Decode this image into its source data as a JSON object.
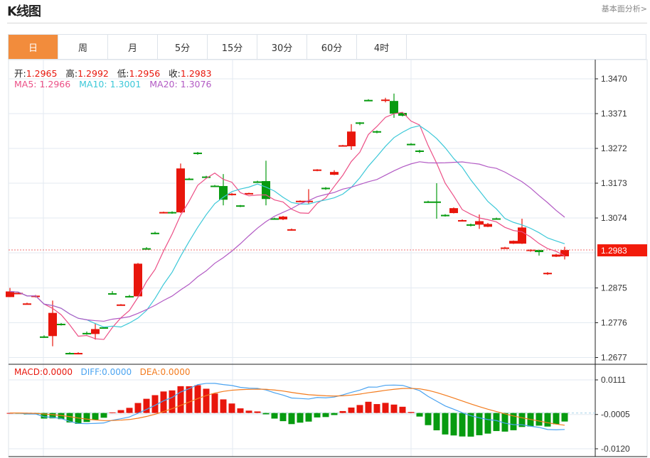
{
  "header": {
    "title": "K线图",
    "fundamental_link": "基本面分析>"
  },
  "tabs": [
    {
      "label": "日",
      "active": true
    },
    {
      "label": "周"
    },
    {
      "label": "月"
    },
    {
      "label": "5分"
    },
    {
      "label": "15分"
    },
    {
      "label": "30分"
    },
    {
      "label": "60分"
    },
    {
      "label": "4时"
    }
  ],
  "ohlc_legend": {
    "open_label": "开:",
    "open": "1.2965",
    "high_label": "高:",
    "high": "1.2992",
    "low_label": "低:",
    "low": "1.2956",
    "close_label": "收:",
    "close": "1.2983"
  },
  "ma_legend": {
    "ma5": "MA5: 1.2966",
    "ma10": "MA10: 1.3001",
    "ma20": "MA20: 1.3076"
  },
  "macd_legend": {
    "macd": "MACD:0.0000",
    "diff": "DIFF:0.0000",
    "dea": "DEA:0.0000"
  },
  "current_price": "1.2983",
  "colors": {
    "up": "#e8160c",
    "down": "#079b10",
    "ma5": "#ec4f86",
    "ma10": "#3cc8d8",
    "ma20": "#b25ac4",
    "diff": "#4aa3f0",
    "dea": "#f37b1d",
    "accent": "#f28c3c"
  },
  "chart_data": {
    "type": "candlestick",
    "price_axis": {
      "ticks": [
        "1.3470",
        "1.3371",
        "1.3272",
        "1.3173",
        "1.3074",
        "1.2875",
        "1.2776",
        "1.2677"
      ],
      "range": [
        1.2677,
        1.347
      ]
    },
    "macd_axis": {
      "ticks": [
        "0.0111",
        "-0.0005",
        "-0.0120"
      ],
      "range": [
        -0.012,
        0.0111
      ]
    },
    "candles": [
      [
        1.2849,
        1.2875,
        1.2849,
        1.2865
      ],
      [
        1.2859,
        1.2863,
        1.2858,
        1.2861
      ],
      [
        1.2829,
        1.2833,
        1.2828,
        1.2831
      ],
      [
        1.2849,
        1.2855,
        1.2848,
        1.2853
      ],
      [
        1.2737,
        1.274,
        1.2733,
        1.2735
      ],
      [
        1.2738,
        1.2839,
        1.2709,
        1.2804
      ],
      [
        1.2773,
        1.2775,
        1.2768,
        1.2771
      ],
      [
        1.269,
        1.2692,
        1.2686,
        1.2688
      ],
      [
        1.2688,
        1.2692,
        1.2686,
        1.269
      ],
      [
        1.2747,
        1.2751,
        1.2742,
        1.2745
      ],
      [
        1.2744,
        1.2774,
        1.2728,
        1.2758
      ],
      [
        1.2763,
        1.2765,
        1.2759,
        1.2761
      ],
      [
        1.286,
        1.2866,
        1.2856,
        1.2858
      ],
      [
        1.2826,
        1.2829,
        1.2825,
        1.2828
      ],
      [
        1.2852,
        1.2855,
        1.2848,
        1.285
      ],
      [
        1.2851,
        1.2946,
        1.2851,
        1.2944
      ],
      [
        1.2988,
        1.2991,
        1.2985,
        1.2986
      ],
      [
        1.3032,
        1.3035,
        1.3028,
        1.303
      ],
      [
        1.3088,
        1.3092,
        1.3087,
        1.3091
      ],
      [
        1.3091,
        1.3093,
        1.3086,
        1.3089
      ],
      [
        1.309,
        1.3229,
        1.3088,
        1.3215
      ],
      [
        1.3186,
        1.3188,
        1.3182,
        1.3184
      ],
      [
        1.326,
        1.3262,
        1.3254,
        1.3256
      ],
      [
        1.3192,
        1.3194,
        1.3189,
        1.319
      ],
      [
        1.3166,
        1.3168,
        1.3162,
        1.3164
      ],
      [
        1.3165,
        1.3199,
        1.311,
        1.3126
      ],
      [
        1.3141,
        1.3145,
        1.3138,
        1.3143
      ],
      [
        1.311,
        1.3111,
        1.3105,
        1.3107
      ],
      [
        1.3143,
        1.3146,
        1.3142,
        1.3145
      ],
      [
        1.3178,
        1.318,
        1.3175,
        1.3176
      ],
      [
        1.3179,
        1.3237,
        1.311,
        1.3128
      ],
      [
        1.3073,
        1.3075,
        1.3069,
        1.3071
      ],
      [
        1.307,
        1.308,
        1.3068,
        1.3078
      ],
      [
        1.3039,
        1.3044,
        1.3038,
        1.3042
      ],
      [
        1.312,
        1.3124,
        1.3119,
        1.3123
      ],
      [
        1.312,
        1.3156,
        1.3114,
        1.3123
      ],
      [
        1.3208,
        1.3213,
        1.3207,
        1.3212
      ],
      [
        1.316,
        1.3162,
        1.3154,
        1.3156
      ],
      [
        1.3197,
        1.321,
        1.3196,
        1.3205
      ],
      [
        1.3278,
        1.3282,
        1.3277,
        1.3281
      ],
      [
        1.3278,
        1.3341,
        1.3268,
        1.332
      ],
      [
        1.3346,
        1.3347,
        1.3338,
        1.3344
      ],
      [
        1.341,
        1.3412,
        1.3407,
        1.3408
      ],
      [
        1.3321,
        1.3323,
        1.3315,
        1.3319
      ],
      [
        1.3407,
        1.3416,
        1.3403,
        1.3411
      ],
      [
        1.3407,
        1.3428,
        1.3359,
        1.3371
      ],
      [
        1.3373,
        1.3375,
        1.3363,
        1.3365
      ],
      [
        1.3285,
        1.3287,
        1.3281,
        1.3283
      ],
      [
        1.3266,
        1.3268,
        1.3259,
        1.3263
      ],
      [
        1.3121,
        1.3123,
        1.3117,
        1.3119
      ],
      [
        1.3121,
        1.3173,
        1.3072,
        1.3119
      ],
      [
        1.3083,
        1.3085,
        1.3078,
        1.3081
      ],
      [
        1.3088,
        1.3104,
        1.3087,
        1.3102
      ],
      [
        1.3066,
        1.307,
        1.3064,
        1.3068
      ],
      [
        1.3056,
        1.3058,
        1.305,
        1.3054
      ],
      [
        1.3055,
        1.3084,
        1.3043,
        1.3065
      ],
      [
        1.3049,
        1.306,
        1.3048,
        1.3057
      ],
      [
        1.3073,
        1.3075,
        1.3069,
        1.3071
      ],
      [
        1.2988,
        1.2992,
        1.2987,
        1.299
      ],
      [
        1.3001,
        1.301,
        1.3,
        1.3009
      ],
      [
        1.3001,
        1.3072,
        1.3,
        1.3047
      ],
      [
        1.2982,
        1.2985,
        1.2978,
        1.2984
      ],
      [
        1.2983,
        1.2984,
        1.2967,
        1.2977
      ],
      [
        1.2914,
        1.292,
        1.2912,
        1.2918
      ],
      [
        1.2964,
        1.2972,
        1.2963,
        1.297
      ],
      [
        1.2965,
        1.2992,
        1.2956,
        1.2983
      ]
    ]
  }
}
